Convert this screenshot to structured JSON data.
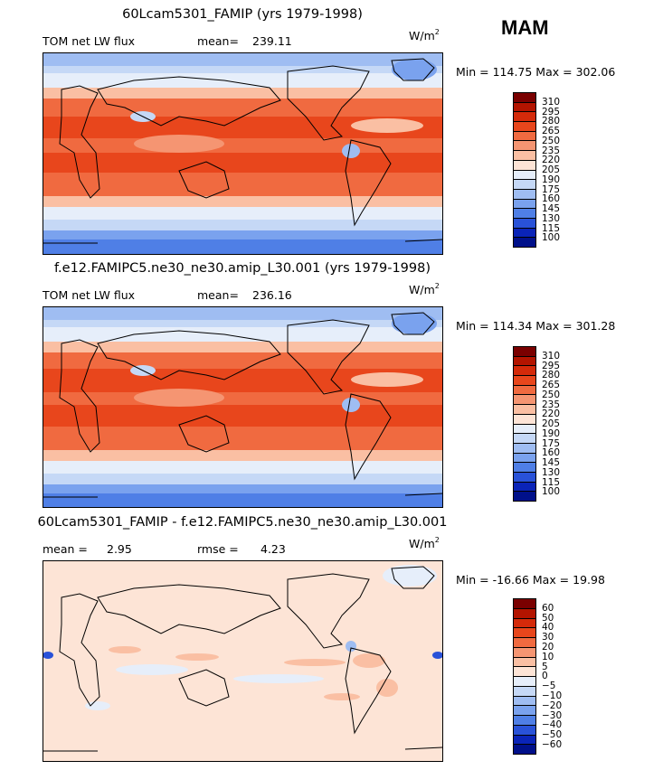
{
  "season": "MAM",
  "panels": [
    {
      "title": "60Lcam5301_FAMIP (yrs 1979-1998)",
      "left_label": "TOM net LW flux",
      "stat1_label": "mean=",
      "stat1_value": "239.11",
      "stat2_label": "",
      "stat2_value": "",
      "units": "W/m",
      "units_exp": "2",
      "minmax": "Min = 114.75 Max = 302.06",
      "type": "climatology"
    },
    {
      "title": "f.e12.FAMIPC5.ne30_ne30.amip_L30.001 (yrs 1979-1998)",
      "left_label": "TOM net LW flux",
      "stat1_label": "mean=",
      "stat1_value": "236.16",
      "stat2_label": "",
      "stat2_value": "",
      "units": "W/m",
      "units_exp": "2",
      "minmax": "Min = 114.34 Max = 301.28",
      "type": "climatology"
    },
    {
      "title": "60Lcam5301_FAMIP - f.e12.FAMIPC5.ne30_ne30.amip_L30.001",
      "left_label": "",
      "stat1_label": "mean =",
      "stat1_value": "2.95",
      "stat2_label": "rmse =",
      "stat2_value": "4.23",
      "units": "W/m",
      "units_exp": "2",
      "minmax": "Min = -16.66 Max = 19.98",
      "type": "difference"
    }
  ],
  "colorbars": {
    "climatology": {
      "labels": [
        "310",
        "295",
        "280",
        "265",
        "250",
        "235",
        "220",
        "205",
        "190",
        "175",
        "160",
        "145",
        "130",
        "115",
        "100"
      ],
      "colors": [
        "#7a0000",
        "#b31400",
        "#d42a0a",
        "#e8461c",
        "#f06a40",
        "#f59572",
        "#fabfa3",
        "#fde4d6",
        "#e6eefa",
        "#c5d8f6",
        "#9fbdf2",
        "#7aa2ee",
        "#4f7fe6",
        "#2952d8",
        "#0a24b8",
        "#00108a"
      ]
    },
    "difference": {
      "labels": [
        "60",
        "50",
        "40",
        "30",
        "20",
        "10",
        "5",
        "0",
        "−5",
        "−10",
        "−20",
        "−30",
        "−40",
        "−50",
        "−60"
      ],
      "colors": [
        "#7a0000",
        "#b31400",
        "#d42a0a",
        "#e8461c",
        "#f06a40",
        "#f59572",
        "#fabfa3",
        "#fde4d6",
        "#e6eefa",
        "#c5d8f6",
        "#9fbdf2",
        "#7aa2ee",
        "#4f7fe6",
        "#2952d8",
        "#0a24b8",
        "#00108a"
      ]
    }
  }
}
